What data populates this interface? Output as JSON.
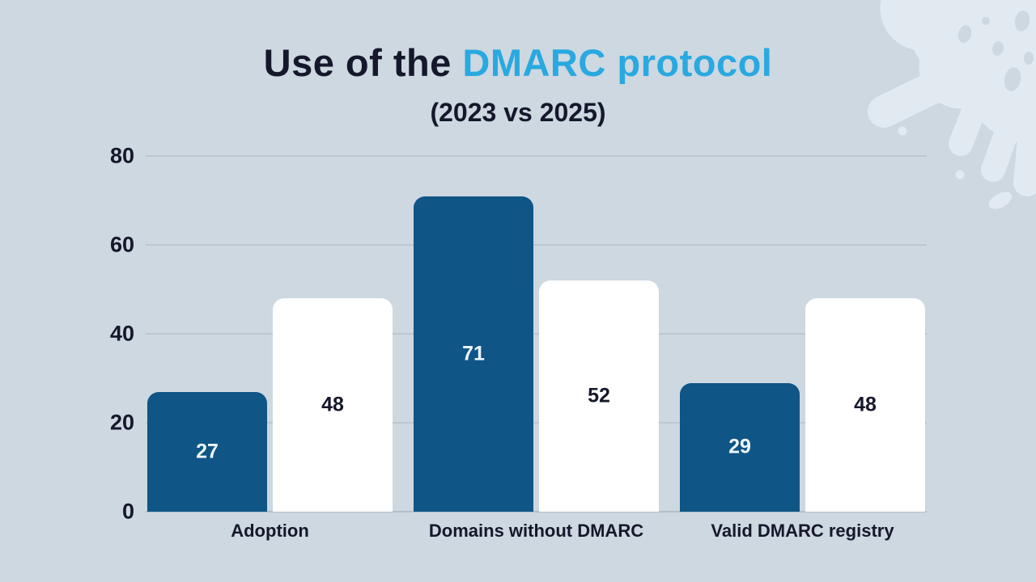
{
  "header": {
    "title_black": "Use of the ",
    "title_blue": "DMARC protocol",
    "subtitle": "(2023 vs 2025)"
  },
  "chart_data": {
    "type": "bar",
    "title": "Use of the DMARC protocol",
    "subtitle": "(2023 vs 2025)",
    "categories": [
      "Adoption",
      "Domains without DMARC",
      "Valid DMARC registry"
    ],
    "series": [
      {
        "name": "2023",
        "color": "#0f5586",
        "label_color": "#eef7fc",
        "values": [
          27,
          71,
          29
        ]
      },
      {
        "name": "2025",
        "color": "#ffffff",
        "label_color": "#15182b",
        "values": [
          48,
          52,
          48
        ]
      }
    ],
    "yticks": [
      0,
      20,
      40,
      60,
      80
    ],
    "ylim": [
      0,
      80
    ],
    "grid": true,
    "legend": "none",
    "value_labels": "centered-in-bar"
  },
  "colors": {
    "background": "#cdd8e1",
    "splash": "#e2eaf1",
    "accent_blue": "#29a9e0",
    "bar_dark": "#0f5586",
    "text_dark": "#15182b",
    "gridline": "#bcc7d0"
  }
}
